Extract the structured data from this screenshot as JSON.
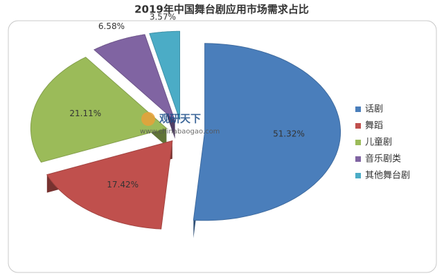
{
  "chart_data": {
    "type": "pie3d",
    "title": "2019年中国舞台剧应用市场需求占比",
    "categories": [
      "话剧",
      "舞蹈",
      "儿童剧",
      "音乐剧类",
      "其他舞台剧"
    ],
    "values": [
      51.32,
      17.42,
      21.11,
      6.58,
      3.57
    ],
    "value_labels": [
      "51.32%",
      "17.42%",
      "21.11%",
      "6.58%",
      "3.57%"
    ],
    "colors": [
      "#4a7ebb",
      "#c0504d",
      "#9bbb59",
      "#8064a2",
      "#4bacc6"
    ],
    "legend": "right",
    "watermark": {
      "name": "观研天下",
      "url": "www.chinabaogao.com"
    }
  }
}
